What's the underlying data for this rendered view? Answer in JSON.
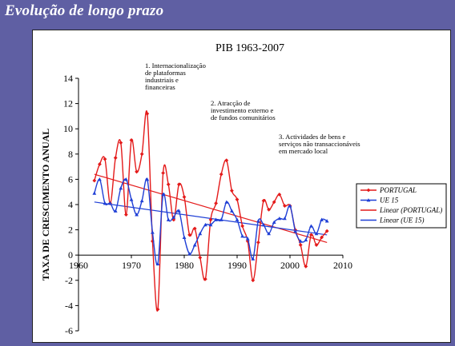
{
  "header": {
    "title": "Evolução de longo prazo"
  },
  "chart_data": {
    "type": "line",
    "title": "PIB 1963-2007",
    "ylabel": "TAXA DE CRESCIMENTO ANUAL",
    "xlabel": "",
    "xlim": [
      1960,
      2010
    ],
    "ylim": [
      -6,
      14
    ],
    "x_ticks": [
      1960,
      1970,
      1980,
      1990,
      2000,
      2010
    ],
    "y_ticks": [
      -6,
      -4,
      -2,
      0,
      2,
      4,
      6,
      8,
      10,
      12,
      14
    ],
    "grid": false,
    "legend_position": "right",
    "annotations": [
      {
        "text": [
          "1. Internacionalização",
          "de plataformas",
          "industriais e",
          "financeiras"
        ]
      },
      {
        "text": [
          "2. Atracção de",
          "investimento externo e",
          "de fundos comunitários"
        ]
      },
      {
        "text": [
          "3. Actividades de bens e",
          "serviços não transaccionáveis",
          "em mercado local"
        ]
      }
    ],
    "series": [
      {
        "name": "PORTUGAL",
        "color": "#e41a1a",
        "marker": "diamond",
        "x": [
          1963,
          1964,
          1965,
          1966,
          1967,
          1968,
          1969,
          1970,
          1971,
          1972,
          1973,
          1974,
          1975,
          1976,
          1977,
          1978,
          1979,
          1980,
          1981,
          1982,
          1983,
          1984,
          1985,
          1986,
          1987,
          1988,
          1989,
          1990,
          1991,
          1992,
          1993,
          1994,
          1995,
          1996,
          1997,
          1998,
          1999,
          2000,
          2001,
          2002,
          2003,
          2004,
          2005,
          2006,
          2007
        ],
        "y": [
          5.9,
          7.2,
          7.6,
          4.1,
          7.7,
          8.9,
          3.2,
          9.1,
          6.6,
          8.0,
          11.2,
          1.1,
          -4.3,
          6.5,
          5.6,
          2.8,
          5.6,
          4.6,
          1.6,
          2.1,
          -0.2,
          -1.9,
          2.8,
          4.1,
          6.4,
          7.5,
          5.1,
          4.4,
          2.3,
          1.1,
          -2.0,
          1.0,
          4.3,
          3.6,
          4.2,
          4.8,
          3.9,
          3.9,
          2.0,
          0.8,
          -0.9,
          1.6,
          0.8,
          1.4,
          1.9
        ]
      },
      {
        "name": "UE 15",
        "color": "#1f3fd6",
        "marker": "triangle",
        "x": [
          1963,
          1964,
          1965,
          1966,
          1967,
          1968,
          1969,
          1970,
          1971,
          1972,
          1973,
          1974,
          1975,
          1976,
          1977,
          1978,
          1979,
          1980,
          1981,
          1982,
          1983,
          1984,
          1985,
          1986,
          1987,
          1988,
          1989,
          1990,
          1991,
          1992,
          1993,
          1994,
          1995,
          1996,
          1997,
          1998,
          1999,
          2000,
          2001,
          2002,
          2003,
          2004,
          2005,
          2006,
          2007
        ],
        "y": [
          4.9,
          6.0,
          4.1,
          4.1,
          3.5,
          5.3,
          6.0,
          4.4,
          3.2,
          4.3,
          6.0,
          1.8,
          -0.7,
          4.8,
          2.8,
          3.0,
          3.5,
          1.4,
          0.1,
          0.8,
          1.7,
          2.4,
          2.4,
          2.8,
          2.8,
          4.2,
          3.5,
          2.8,
          1.5,
          1.3,
          -0.3,
          2.7,
          2.4,
          1.7,
          2.6,
          2.9,
          2.9,
          3.9,
          1.9,
          1.1,
          1.2,
          2.3,
          1.7,
          2.8,
          2.7
        ]
      },
      {
        "name": "Linear (PORTUGAL)",
        "color": "#e41a1a",
        "marker": "none",
        "x": [
          1963,
          2007
        ],
        "y": [
          6.4,
          1.0
        ]
      },
      {
        "name": "Linear (UE 15)",
        "color": "#1f3fd6",
        "marker": "none",
        "x": [
          1963,
          2007
        ],
        "y": [
          4.2,
          1.6
        ]
      }
    ]
  }
}
